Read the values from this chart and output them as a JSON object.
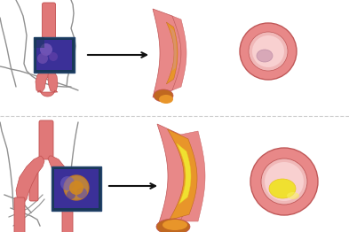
{
  "bg_color": "#ffffff",
  "artery_color": "#e07878",
  "artery_dark": "#c05050",
  "artery_light": "#f0a0a0",
  "vessel_wall": "#e88888",
  "vessel_wall_dark": "#c05858",
  "plaque_orange": "#e8952a",
  "plaque_dark": "#c06820",
  "plaque_red_bottom": "#b03020",
  "plaque_pink": "#d08888",
  "cholesterol_yellow": "#f0e030",
  "cholesterol_yellow2": "#e8c820",
  "cholesterol_small": "#d8a0b8",
  "lumen_color": "#f0b8b8",
  "lumen_inner": "#f8d0d0",
  "box_purple": "#4030a0",
  "box_teal": "#183858",
  "box_purple2": "#6050c0",
  "fdg_spot": "#c07828",
  "fdg_glow": "#d09030",
  "arrow_color": "#101010",
  "body_line": "#909090",
  "body_line2": "#b0b0b0",
  "figsize": [
    3.93,
    2.62
  ],
  "dpi": 100
}
